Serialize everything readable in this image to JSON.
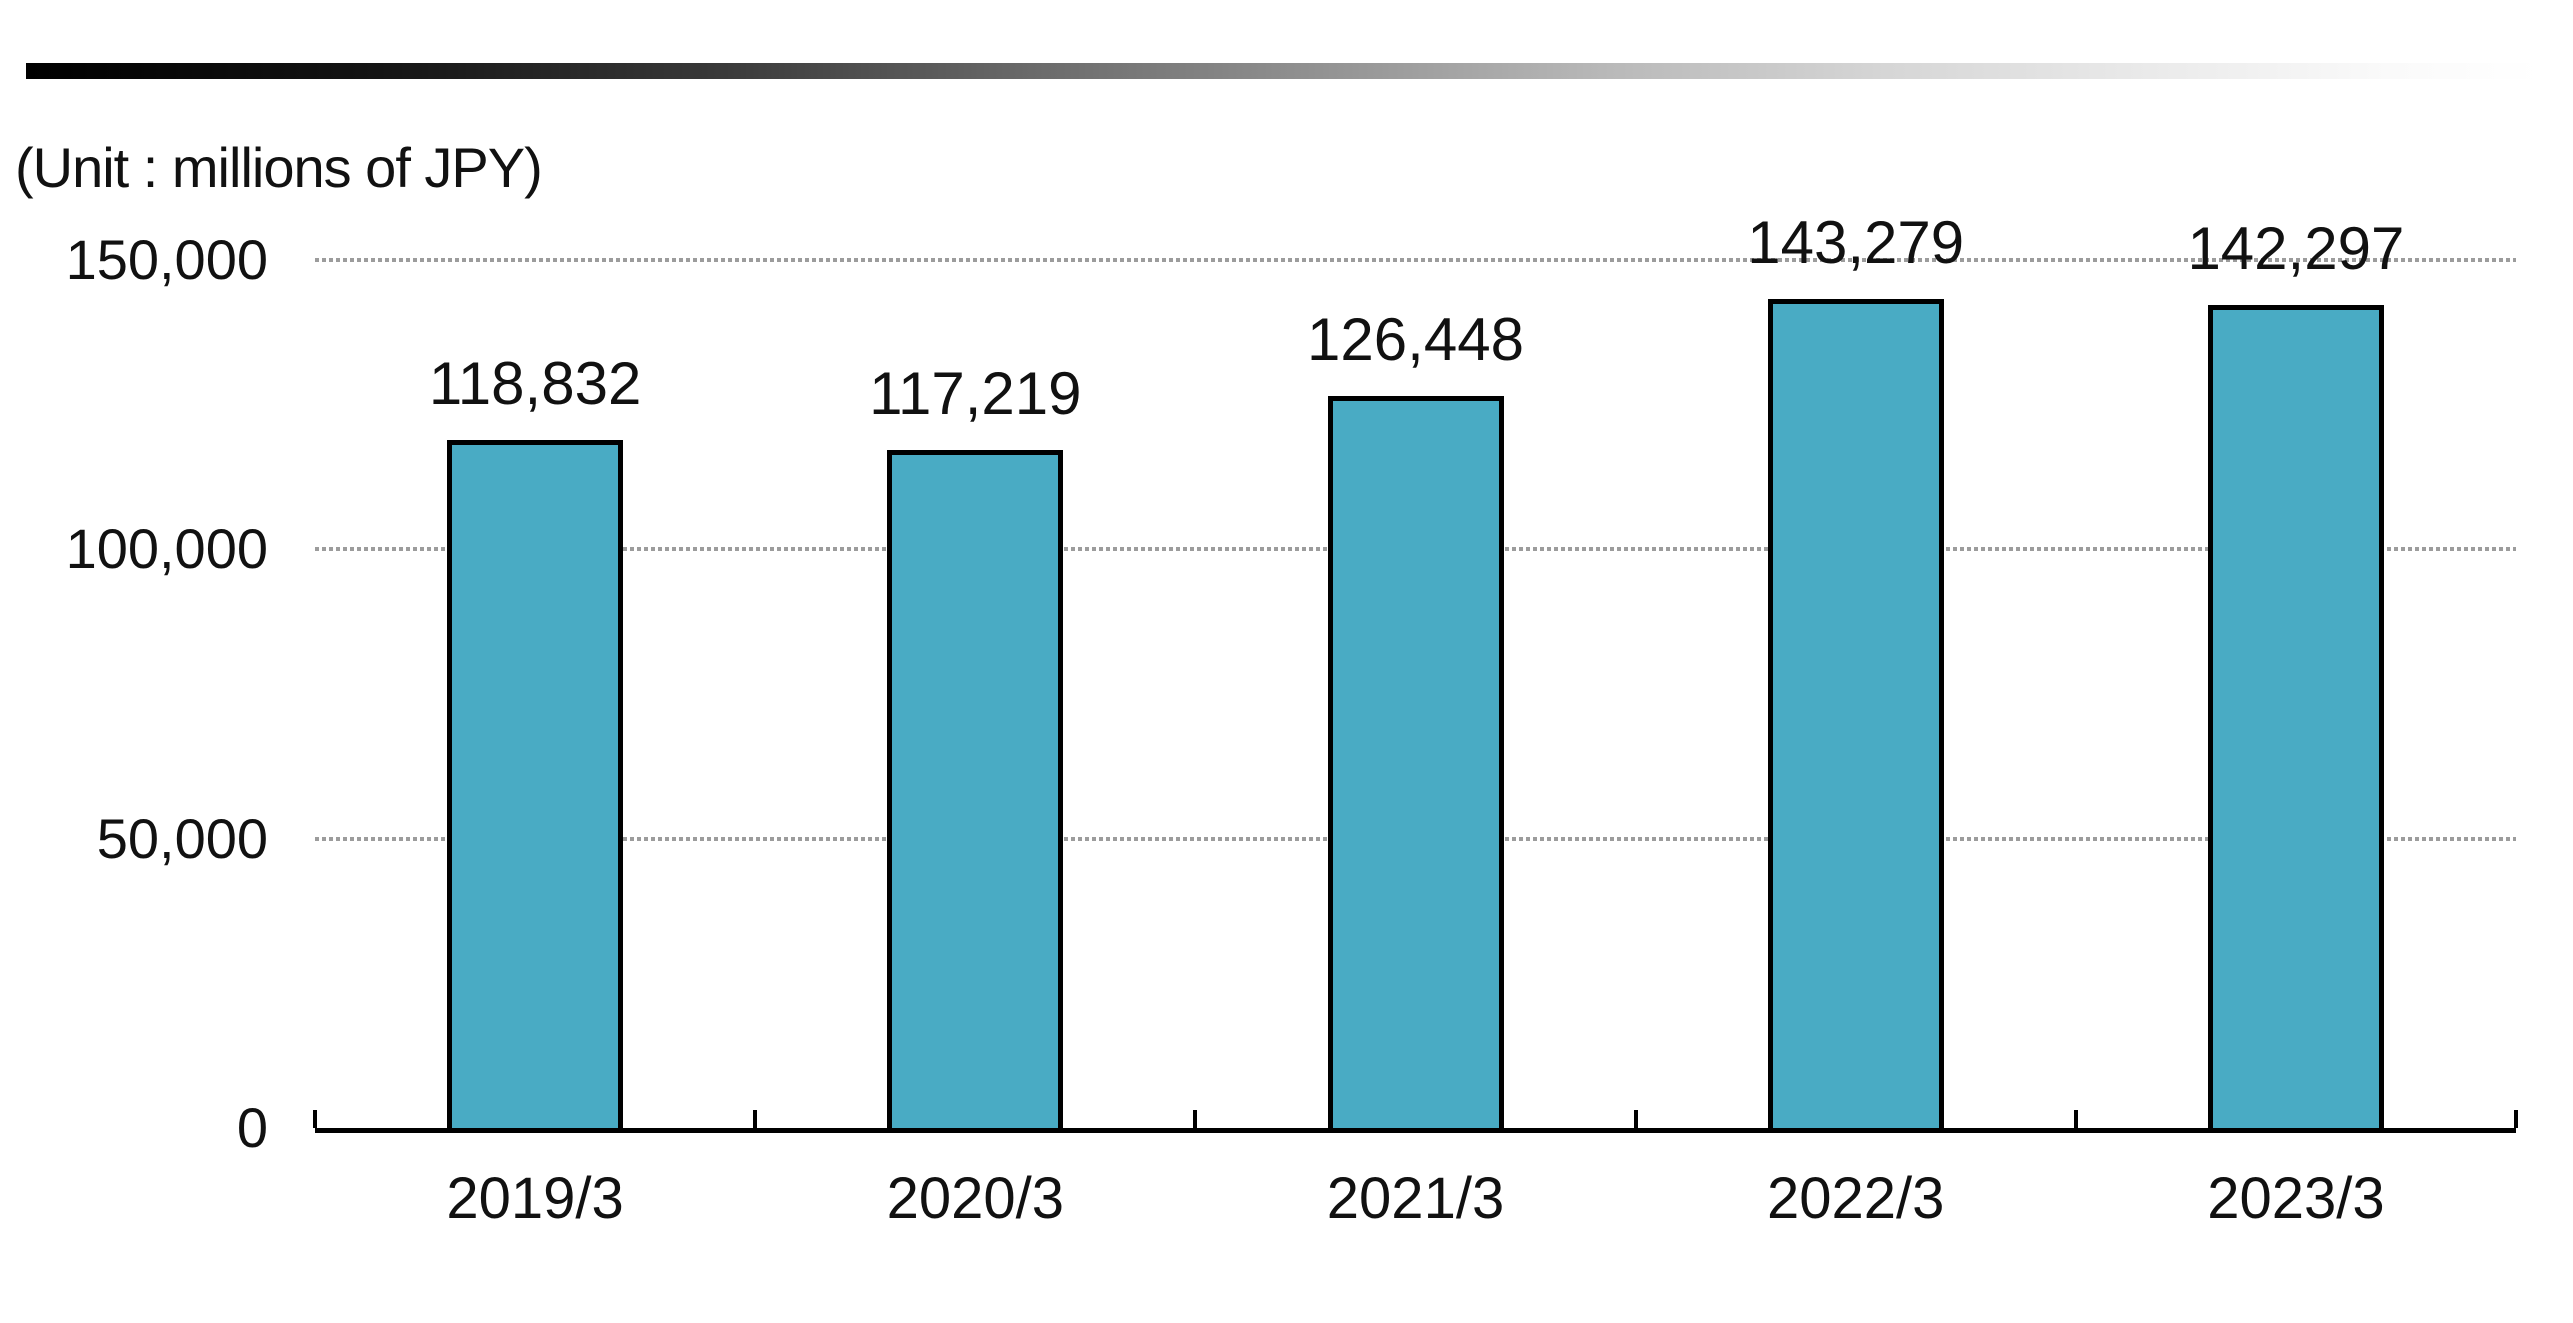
{
  "chart_data": {
    "type": "bar",
    "unit_label": "(Unit : millions of JPY)",
    "categories": [
      "2019/3",
      "2020/3",
      "2021/3",
      "2022/3",
      "2023/3"
    ],
    "values": [
      118832,
      117219,
      126448,
      143279,
      142297
    ],
    "value_labels": [
      "118,832",
      "117,219",
      "126,448",
      "143,279",
      "142,297"
    ],
    "y_ticks": [
      {
        "value": 150000,
        "label": "150,000"
      },
      {
        "value": 100000,
        "label": "100,000"
      },
      {
        "value": 50000,
        "label": "50,000"
      },
      {
        "value": 0,
        "label": "0"
      }
    ],
    "ylim": [
      0,
      150000
    ],
    "grid": "horizontal-dotted",
    "legend": "none",
    "colors": {
      "bar_fill": "#49abc4",
      "bar_border": "#000000",
      "gridline": "#9c9c9c",
      "axis": "#000000",
      "text": "#111111"
    }
  }
}
